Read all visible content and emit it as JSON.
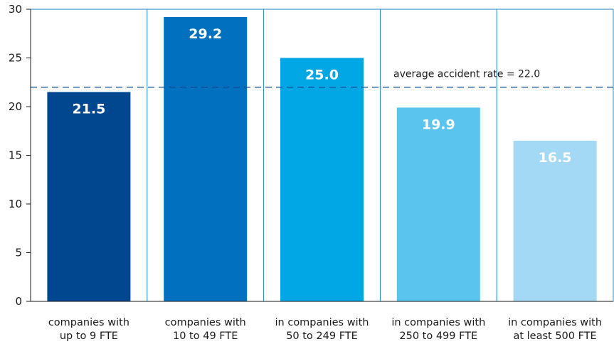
{
  "chart_data": {
    "type": "bar",
    "title": "",
    "xlabel": "",
    "ylabel": "",
    "ylim": [
      0,
      30
    ],
    "yticks": [
      0,
      5,
      10,
      15,
      20,
      25,
      30
    ],
    "grid": "vertical separators between categories",
    "categories": [
      [
        "companies with",
        "up to 9 FTE"
      ],
      [
        "companies with",
        "10 to 49 FTE"
      ],
      [
        "in companies with",
        "50 to 249 FTE"
      ],
      [
        "in companies with",
        "250 to 499 FTE"
      ],
      [
        "in companies with",
        "at least 500 FTE"
      ]
    ],
    "values": [
      21.5,
      29.2,
      25.0,
      19.9,
      16.5
    ],
    "value_labels": [
      "21.5",
      "29.2",
      "25.0",
      "19.9",
      "16.5"
    ],
    "colors": [
      "#00478f",
      "#0070bf",
      "#00a7e4",
      "#5bc4ee",
      "#a4d9f5"
    ],
    "reference_line": {
      "value": 22.0,
      "label": "average accident rate = 22.0",
      "color": "#00478f"
    }
  }
}
